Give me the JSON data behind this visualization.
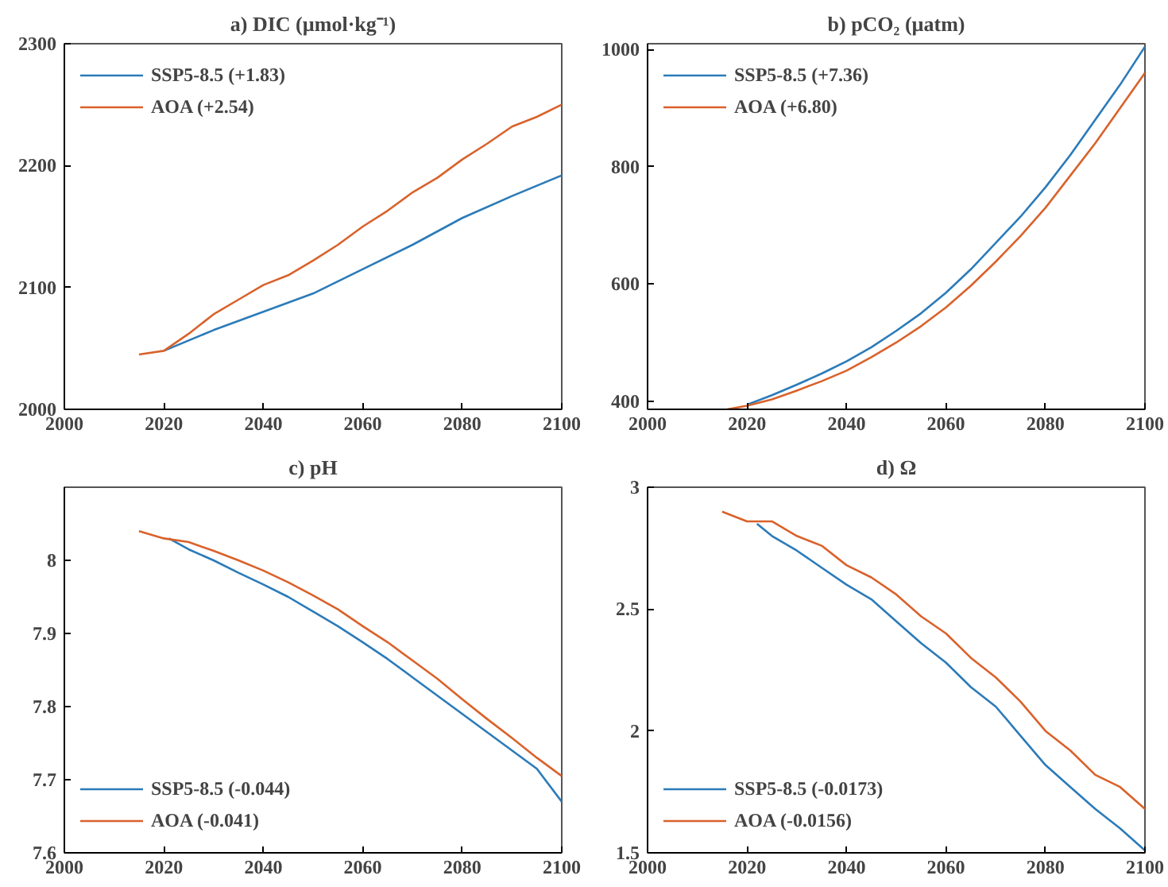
{
  "chart_data": [
    {
      "type": "line",
      "title": "a) DIC (µmol·kg⁻¹)",
      "xlim": [
        2000,
        2100
      ],
      "xticks": [
        2000,
        2020,
        2040,
        2060,
        2080,
        2100
      ],
      "ylim": [
        2000,
        2300
      ],
      "yticks": [
        2000,
        2100,
        2200,
        2300
      ],
      "grid": false,
      "legend": "top left",
      "series": [
        {
          "name": "SSP5-8.5 (+1.83)",
          "color": "#2b7bb9",
          "x": [
            2020,
            2030,
            2040,
            2050,
            2060,
            2070,
            2080,
            2090,
            2100
          ],
          "values": [
            2048,
            2065,
            2080,
            2095,
            2115,
            2135,
            2157,
            2175,
            2192
          ]
        },
        {
          "name": "AOA (+2.54)",
          "color": "#d9622b",
          "x": [
            2015,
            2020,
            2025,
            2030,
            2035,
            2040,
            2045,
            2050,
            2055,
            2060,
            2065,
            2070,
            2075,
            2080,
            2085,
            2090,
            2095,
            2100
          ],
          "values": [
            2045,
            2048,
            2062,
            2078,
            2090,
            2102,
            2110,
            2122,
            2135,
            2150,
            2163,
            2178,
            2190,
            2205,
            2218,
            2232,
            2240,
            2250
          ]
        }
      ]
    },
    {
      "type": "line",
      "title": "b) pCO₂ (µatm)",
      "xlim": [
        2000,
        2100
      ],
      "xticks": [
        2000,
        2020,
        2040,
        2060,
        2080,
        2100
      ],
      "ylim": [
        386,
        1010
      ],
      "yticks": [
        400,
        600,
        800,
        1000
      ],
      "grid": false,
      "legend": "top left",
      "series": [
        {
          "name": "SSP5-8.5 (+7.36)",
          "color": "#2b7bb9",
          "x": [
            2020,
            2025,
            2030,
            2035,
            2040,
            2045,
            2050,
            2055,
            2060,
            2065,
            2070,
            2075,
            2080,
            2085,
            2090,
            2095,
            2100
          ],
          "values": [
            394,
            410,
            428,
            447,
            468,
            492,
            520,
            550,
            585,
            625,
            670,
            715,
            765,
            820,
            880,
            940,
            1005
          ]
        },
        {
          "name": "AOA (+6.80)",
          "color": "#d9622b",
          "x": [
            2016,
            2020,
            2025,
            2030,
            2035,
            2040,
            2045,
            2050,
            2055,
            2060,
            2065,
            2070,
            2075,
            2080,
            2085,
            2090,
            2095,
            2100
          ],
          "values": [
            386,
            392,
            403,
            418,
            434,
            452,
            475,
            500,
            528,
            560,
            597,
            638,
            682,
            730,
            785,
            840,
            900,
            960
          ]
        }
      ]
    },
    {
      "type": "line",
      "title": "c) pH",
      "xlim": [
        2000,
        2100
      ],
      "xticks": [
        2000,
        2020,
        2040,
        2060,
        2080,
        2100
      ],
      "ylim": [
        7.6,
        8.1
      ],
      "yticks": [
        7.6,
        7.7,
        7.8,
        7.9,
        8
      ],
      "grid": false,
      "legend": "bottom left",
      "series": [
        {
          "name": "SSP5-8.5 (-0.044)",
          "color": "#2b7bb9",
          "x": [
            2021,
            2025,
            2030,
            2035,
            2040,
            2045,
            2050,
            2055,
            2060,
            2065,
            2070,
            2075,
            2080,
            2085,
            2090,
            2095,
            2100
          ],
          "values": [
            8.03,
            8.015,
            8.0,
            7.983,
            7.967,
            7.95,
            7.93,
            7.91,
            7.888,
            7.865,
            7.84,
            7.815,
            7.79,
            7.765,
            7.74,
            7.715,
            7.67
          ]
        },
        {
          "name": "AOA (-0.041)",
          "color": "#d9622b",
          "x": [
            2015,
            2020,
            2025,
            2030,
            2035,
            2040,
            2045,
            2050,
            2055,
            2060,
            2065,
            2070,
            2075,
            2080,
            2085,
            2090,
            2095,
            2100
          ],
          "values": [
            8.04,
            8.03,
            8.025,
            8.013,
            8.0,
            7.986,
            7.97,
            7.952,
            7.933,
            7.91,
            7.888,
            7.863,
            7.838,
            7.81,
            7.783,
            7.757,
            7.73,
            7.705
          ]
        }
      ]
    },
    {
      "type": "line",
      "title": "d) Ω",
      "xlim": [
        2000,
        2100
      ],
      "xticks": [
        2000,
        2020,
        2040,
        2060,
        2080,
        2100
      ],
      "ylim": [
        1.5,
        3
      ],
      "yticks": [
        1.5,
        2,
        2.5,
        3
      ],
      "grid": false,
      "legend": "bottom left",
      "series": [
        {
          "name": "SSP5-8.5 (-0.0173)",
          "color": "#2b7bb9",
          "x": [
            2022,
            2025,
            2030,
            2035,
            2040,
            2045,
            2050,
            2055,
            2060,
            2065,
            2070,
            2075,
            2080,
            2085,
            2090,
            2095,
            2100
          ],
          "values": [
            2.85,
            2.8,
            2.74,
            2.67,
            2.6,
            2.54,
            2.45,
            2.36,
            2.28,
            2.18,
            2.1,
            1.98,
            1.86,
            1.77,
            1.68,
            1.6,
            1.51
          ]
        },
        {
          "name": "AOA (-0.0156)",
          "color": "#d9622b",
          "x": [
            2015,
            2020,
            2025,
            2030,
            2035,
            2040,
            2045,
            2050,
            2055,
            2060,
            2065,
            2070,
            2075,
            2080,
            2085,
            2090,
            2095,
            2100
          ],
          "values": [
            2.9,
            2.86,
            2.86,
            2.8,
            2.76,
            2.68,
            2.63,
            2.56,
            2.47,
            2.4,
            2.3,
            2.22,
            2.12,
            2.0,
            1.92,
            1.82,
            1.77,
            1.68
          ]
        }
      ]
    }
  ]
}
